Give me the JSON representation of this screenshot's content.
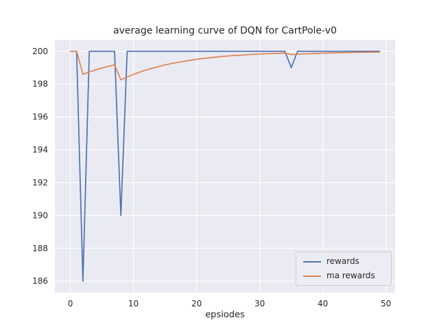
{
  "chart_data": {
    "type": "line",
    "title": "average learning curve of DQN for CartPole-v0",
    "xlabel": "epsiodes",
    "ylabel": "",
    "grid": true,
    "plot_bg_color": "#eaeaf2",
    "grid_color": "#ffffff",
    "text_color": "#262626",
    "legend_position": "lower right",
    "xlim": [
      -2.45,
      51.45
    ],
    "ylim": [
      185.3,
      200.7
    ],
    "xticks": [
      0,
      10,
      20,
      30,
      40,
      50
    ],
    "yticks": [
      186,
      188,
      190,
      192,
      194,
      196,
      198,
      200
    ],
    "x": [
      0,
      1,
      2,
      3,
      4,
      5,
      6,
      7,
      8,
      9,
      10,
      11,
      12,
      13,
      14,
      15,
      16,
      17,
      18,
      19,
      20,
      21,
      22,
      23,
      24,
      25,
      26,
      27,
      28,
      29,
      30,
      31,
      32,
      33,
      34,
      35,
      36,
      37,
      38,
      39,
      40,
      41,
      42,
      43,
      44,
      45,
      46,
      47,
      48,
      49
    ],
    "series": [
      {
        "name": "rewards",
        "color": "#4c72b0",
        "values": [
          200,
          200,
          186,
          200,
          200,
          200,
          200,
          200,
          190,
          200,
          200,
          200,
          200,
          200,
          200,
          200,
          200,
          200,
          200,
          200,
          200,
          200,
          200,
          200,
          200,
          200,
          200,
          200,
          200,
          200,
          200,
          200,
          200,
          200,
          200,
          199,
          200,
          200,
          200,
          200,
          200,
          200,
          200,
          200,
          200,
          200,
          200,
          200,
          200,
          200
        ]
      },
      {
        "name": "ma rewards",
        "color": "#dd8452",
        "values": [
          200,
          200,
          198.6,
          198.74,
          198.87,
          198.98,
          199.08,
          199.17,
          198.26,
          198.43,
          198.59,
          198.73,
          198.86,
          198.97,
          199.07,
          199.17,
          199.25,
          199.32,
          199.39,
          199.45,
          199.51,
          199.56,
          199.6,
          199.64,
          199.68,
          199.71,
          199.74,
          199.76,
          199.79,
          199.81,
          199.83,
          199.85,
          199.86,
          199.87,
          199.89,
          199.8,
          199.82,
          199.84,
          199.85,
          199.87,
          199.88,
          199.89,
          199.9,
          199.91,
          199.92,
          199.93,
          199.94,
          199.94,
          199.95,
          199.95
        ]
      }
    ]
  }
}
